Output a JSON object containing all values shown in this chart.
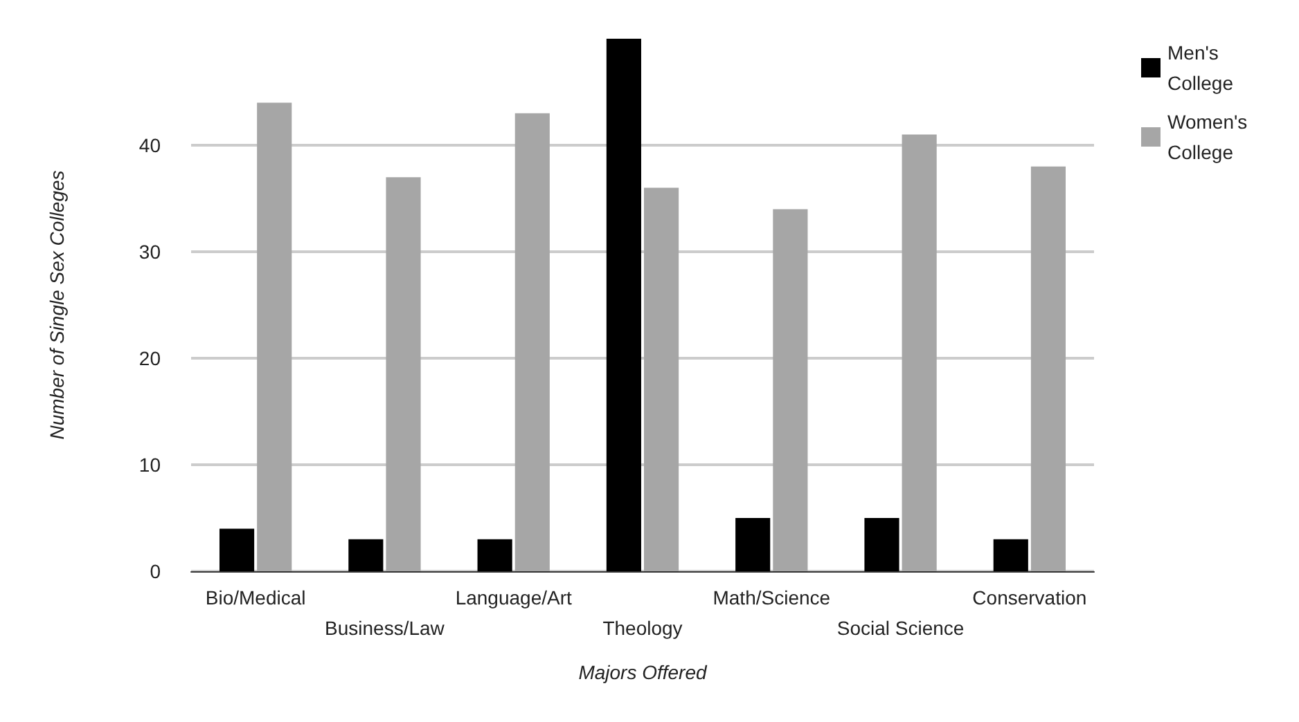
{
  "chart_data": {
    "type": "bar",
    "xlabel": "Majors Offered",
    "ylabel": "Number of Single Sex Colleges",
    "categories": [
      "Bio/Medical",
      "Business/Law",
      "Language/Art",
      "Theology",
      "Math/Science",
      "Social Science",
      "Conservation"
    ],
    "series": [
      {
        "name": "Men's College",
        "color": "#000000",
        "values": [
          4,
          3,
          3,
          50,
          5,
          5,
          3
        ]
      },
      {
        "name": "Women's College",
        "color": "#a6a6a6",
        "values": [
          44,
          37,
          43,
          36,
          34,
          41,
          38
        ]
      }
    ],
    "ylim": [
      0,
      50
    ],
    "yticks": [
      0,
      10,
      20,
      30,
      40
    ],
    "grid": "y",
    "legend": "top right"
  }
}
